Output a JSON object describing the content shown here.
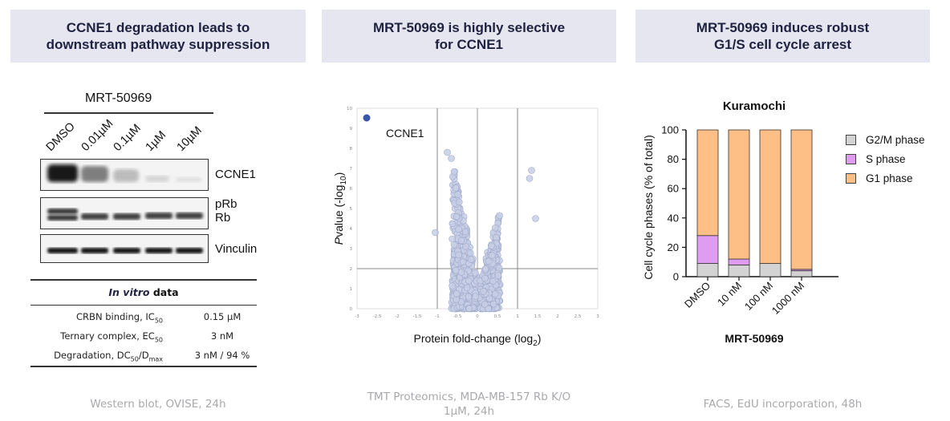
{
  "panels": {
    "left": {
      "header_line1": "CCNE1 degradation leads to",
      "header_line2": "downstream pathway suppression",
      "caption": "Western blot, OVISE, 24h",
      "compound": "MRT-50969",
      "lanes": [
        "DMSO",
        "0.01µM",
        "0.1µM",
        "1µM",
        "10µM"
      ],
      "blots": {
        "ccne1": "CCNE1",
        "prb": "pRb",
        "rb": "Rb",
        "vinculin": "Vinculin"
      },
      "table": {
        "title_italic": "In vitro",
        "title_rest": "data",
        "rows": [
          {
            "key": "CRBN binding, IC",
            "sub": "50",
            "key_end": "",
            "value": "0.15 µM"
          },
          {
            "key": "Ternary complex, EC",
            "sub": "50",
            "key_end": "",
            "value": "3 nM"
          },
          {
            "key": "Degradation, DC",
            "sub": "50",
            "key_end": "/D",
            "sub2": "max",
            "value": "3 nM / 94 %"
          }
        ]
      }
    },
    "middle": {
      "header_line1": "MRT-50969 is highly selective",
      "header_line2": "for CCNE1",
      "caption_line1": "TMT Proteomics, MDA-MB-157 Rb K/O",
      "caption_line2": "1µM, 24h"
    },
    "right": {
      "header_line1": "MRT-50969 induces robust",
      "header_line2": "G1/S cell cycle arrest",
      "caption": "FACS, EdU incorporation, 48h"
    }
  },
  "colors": {
    "g2m": "#d3d3d3",
    "s": "#e09cf0",
    "g1": "#fdbf86",
    "volcano_point": "#c7cfe6",
    "volcano_hit": "#3a55ac",
    "header_bg": "#e6e6f0"
  },
  "chart_data": [
    {
      "type": "scatter",
      "title": "",
      "xlabel": "Protein fold-change (log2)",
      "ylabel": "P value (-log10)",
      "xlim": [
        -3,
        3
      ],
      "ylim": [
        0,
        10
      ],
      "xticks": [
        -3,
        -2.5,
        -2,
        -1.5,
        -1,
        -0.5,
        0,
        0.5,
        1,
        1.5,
        2,
        2.5,
        3
      ],
      "yticks": [
        0,
        1,
        2,
        3,
        4,
        5,
        6,
        7,
        8,
        9,
        10
      ],
      "thresholds": {
        "x": [
          -1,
          1
        ],
        "y": 2
      },
      "highlight": {
        "label": "CCNE1",
        "x": -3.0,
        "y": 10.0
      },
      "outliers": [
        {
          "x": 1.35,
          "y": 6.9
        },
        {
          "x": 1.3,
          "y": 6.5
        },
        {
          "x": 1.45,
          "y": 4.5
        },
        {
          "x": -1.05,
          "y": 3.8
        },
        {
          "x": -0.75,
          "y": 7.8
        },
        {
          "x": -0.65,
          "y": 7.5
        }
      ]
    },
    {
      "type": "bar",
      "stacked": true,
      "title": "Kuramochi",
      "xlabel": "MRT-50969",
      "ylabel": "Cell cycle phases (% of total)",
      "ylim": [
        0,
        100
      ],
      "yticks": [
        0,
        20,
        40,
        60,
        80,
        100
      ],
      "categories": [
        "DMSO",
        "10 nM",
        "100 nM",
        "1000 nM"
      ],
      "series": [
        {
          "name": "G2/M phase",
          "values": [
            9,
            8,
            9,
            4
          ]
        },
        {
          "name": "S phase",
          "values": [
            19,
            4,
            0,
            1
          ]
        },
        {
          "name": "G1 phase",
          "values": [
            72,
            88,
            91,
            95
          ]
        }
      ],
      "legend": [
        "G2/M phase",
        "S phase",
        "G1 phase"
      ]
    }
  ]
}
